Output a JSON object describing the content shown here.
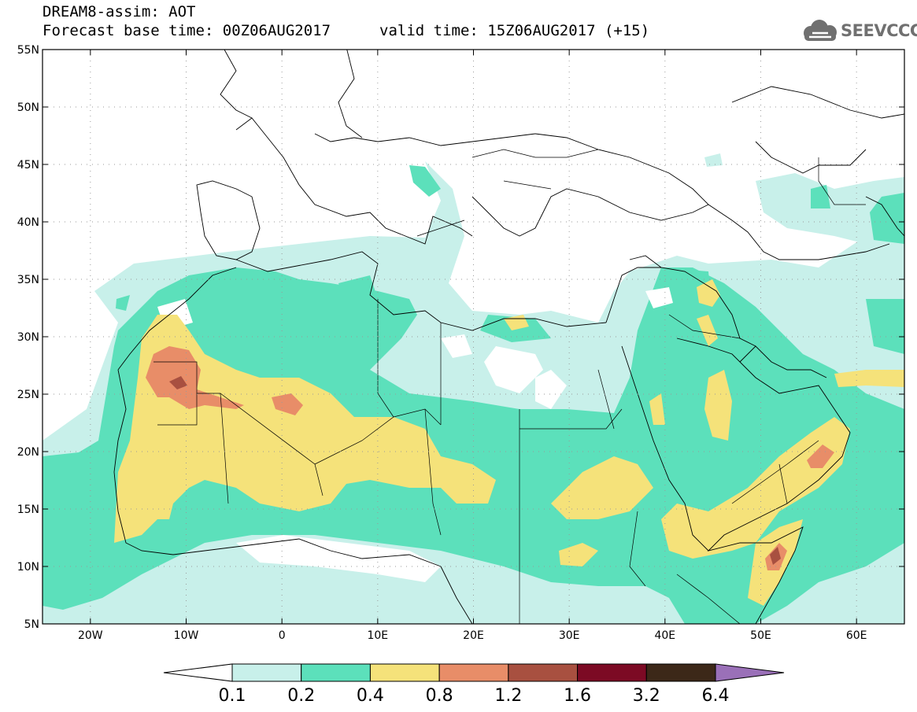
{
  "header": {
    "title": "DREAM8-assim: AOT",
    "base_time": "Forecast base time: 00Z06AUG2017",
    "valid_time": "valid time: 15Z06AUG2017 (+15)"
  },
  "logo": {
    "text": "SEEVCCC",
    "icon": "cloud-icon"
  },
  "map": {
    "lon_range": [
      -25,
      65
    ],
    "lat_range": [
      5,
      55
    ],
    "lat_ticks": [
      {
        "value": 55,
        "label": "55N"
      },
      {
        "value": 50,
        "label": "50N"
      },
      {
        "value": 45,
        "label": "45N"
      },
      {
        "value": 40,
        "label": "40N"
      },
      {
        "value": 35,
        "label": "35N"
      },
      {
        "value": 30,
        "label": "30N"
      },
      {
        "value": 25,
        "label": "25N"
      },
      {
        "value": 20,
        "label": "20N"
      },
      {
        "value": 15,
        "label": "15N"
      },
      {
        "value": 10,
        "label": "10N"
      },
      {
        "value": 5,
        "label": "5N"
      }
    ],
    "lon_ticks": [
      {
        "value": -20,
        "label": "20W"
      },
      {
        "value": -10,
        "label": "10W"
      },
      {
        "value": 0,
        "label": "0"
      },
      {
        "value": 10,
        "label": "10E"
      },
      {
        "value": 20,
        "label": "20E"
      },
      {
        "value": 30,
        "label": "30E"
      },
      {
        "value": 40,
        "label": "40E"
      },
      {
        "value": 50,
        "label": "50E"
      },
      {
        "value": 60,
        "label": "60E"
      }
    ],
    "grid": "dotted"
  },
  "colorbar": {
    "colors": [
      "#ffffff",
      "#c8f0ea",
      "#5ce0bb",
      "#f5e27a",
      "#e88d68",
      "#a85040",
      "#7c0a24",
      "#3c2818",
      "#9a70b8"
    ],
    "labels": [
      "0.1",
      "0.2",
      "0.4",
      "0.8",
      "1.2",
      "1.6",
      "3.2",
      "6.4"
    ]
  }
}
